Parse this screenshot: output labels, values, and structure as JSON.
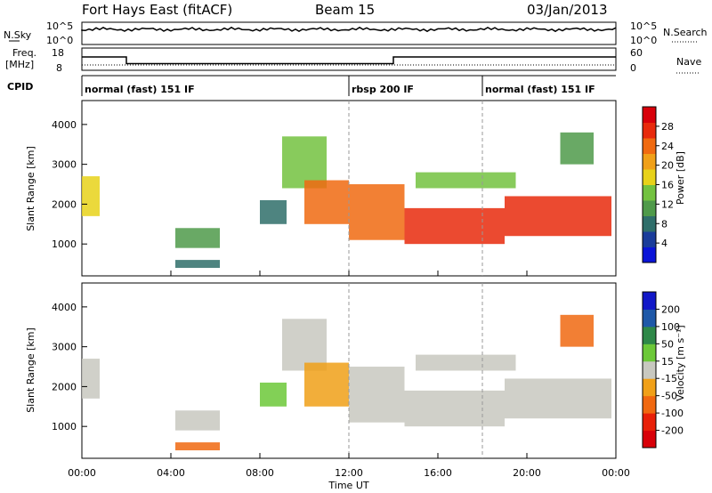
{
  "header": {
    "site": "Fort Hays East (fitACF)",
    "beam": "Beam 15",
    "date": "03/Jan/2013"
  },
  "top_panel": {
    "left_label": "N.Sky",
    "right_label": "N.Search",
    "left_ticks": [
      "10^5",
      "10^0"
    ],
    "right_ticks": [
      "10^5",
      "10^0"
    ]
  },
  "freq_panel": {
    "left_label_1": "Freq.",
    "left_label_2": "[MHz]",
    "right_label": "Nave",
    "left_ticks": [
      "18",
      "8"
    ],
    "right_ticks": [
      "60",
      "0"
    ]
  },
  "cpid": {
    "label": "CPID",
    "segments": [
      {
        "name": "normal (fast) 151 IF",
        "start": "00:00"
      },
      {
        "name": "rbsp 200 IF",
        "start": "12:00"
      },
      {
        "name": "normal (fast) 151 IF",
        "start": "18:00"
      }
    ]
  },
  "power_panel": {
    "ylabel": "Slant Range [km]",
    "cbar_label": "Power [dB]",
    "y_ticks": [
      "4000",
      "3000",
      "2000",
      "1000"
    ],
    "cbar_ticks": [
      "28",
      "24",
      "20",
      "16",
      "12",
      "8",
      "4"
    ],
    "cbar_colors": [
      "#0a14d8",
      "#1a3c9a",
      "#2f6e6a",
      "#4f9a4a",
      "#73c240",
      "#e8d21a",
      "#f0a018",
      "#f06a10",
      "#e82a0c",
      "#d8000a"
    ]
  },
  "velocity_panel": {
    "ylabel": "Slant Range [km]",
    "cbar_label": "Velocity [m s⁻¹]",
    "y_ticks": [
      "4000",
      "3000",
      "2000",
      "1000"
    ],
    "cbar_ticks": [
      "200",
      "100",
      "50",
      "15",
      "-15",
      "-50",
      "-100",
      "-200"
    ],
    "cbar_colors": [
      "#1218c8",
      "#1e58a8",
      "#2e8848",
      "#6cc838",
      "#c8c8c0",
      "#f0a018",
      "#f06810",
      "#e82008",
      "#d80008"
    ]
  },
  "x_axis": {
    "label": "Time UT",
    "ticks": [
      "00:00",
      "04:00",
      "08:00",
      "12:00",
      "16:00",
      "20:00",
      "00:00"
    ]
  },
  "chart_data": {
    "type": "heatmap",
    "title": "Fort Hays East (fitACF)",
    "subtitle": "Beam 15 03/Jan/2013",
    "xlabel": "Time UT",
    "ylabel": "Slant Range [km]",
    "xlim": [
      "00:00",
      "24:00"
    ],
    "ylim": [
      200,
      4600
    ],
    "frequency_mhz": [
      {
        "from": "00:00",
        "to": "02:00",
        "value": 16
      },
      {
        "from": "02:00",
        "to": "14:00",
        "value": 13
      },
      {
        "from": "14:00",
        "to": "24:00",
        "value": 16
      }
    ],
    "echo_regions": [
      {
        "time_start": 0.0,
        "time_end": 0.8,
        "range_min": 1700,
        "range_max": 2700,
        "power_db": 16,
        "velocity_ms": 0
      },
      {
        "time_start": 4.2,
        "time_end": 6.2,
        "range_min": 900,
        "range_max": 1400,
        "power_db": 10,
        "velocity_ms": 0
      },
      {
        "time_start": 4.2,
        "time_end": 6.2,
        "range_min": 400,
        "range_max": 600,
        "power_db": 6,
        "velocity_ms": -50
      },
      {
        "time_start": 8.0,
        "time_end": 9.2,
        "range_min": 1500,
        "range_max": 2100,
        "power_db": 8,
        "velocity_ms": 15
      },
      {
        "time_start": 9.0,
        "time_end": 11.0,
        "range_min": 2400,
        "range_max": 3700,
        "power_db": 12,
        "velocity_ms": 0
      },
      {
        "time_start": 10.0,
        "time_end": 12.0,
        "range_min": 1500,
        "range_max": 2600,
        "power_db": 22,
        "velocity_ms": -15
      },
      {
        "time_start": 12.0,
        "time_end": 14.5,
        "range_min": 1100,
        "range_max": 2500,
        "power_db": 24,
        "velocity_ms": 0
      },
      {
        "time_start": 14.5,
        "time_end": 19.0,
        "range_min": 1000,
        "range_max": 1900,
        "power_db": 28,
        "velocity_ms": 0
      },
      {
        "time_start": 15.0,
        "time_end": 19.5,
        "range_min": 2400,
        "range_max": 2800,
        "power_db": 14,
        "velocity_ms": 0
      },
      {
        "time_start": 19.0,
        "time_end": 23.8,
        "range_min": 1200,
        "range_max": 2200,
        "power_db": 26,
        "velocity_ms": 0
      },
      {
        "time_start": 21.5,
        "time_end": 23.0,
        "range_min": 3000,
        "range_max": 3800,
        "power_db": 10,
        "velocity_ms": -50
      }
    ]
  }
}
